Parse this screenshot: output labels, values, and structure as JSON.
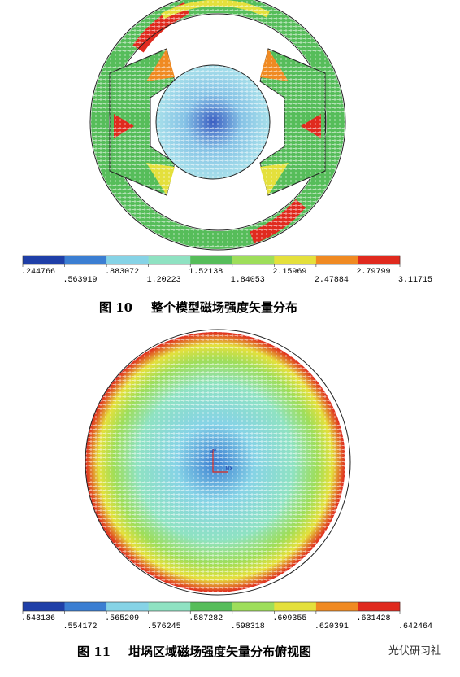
{
  "figures": [
    {
      "label": "图 10",
      "title": "整个模型磁场强度矢量分布",
      "colorbar": {
        "colors": [
          "#1f3fa8",
          "#3b7ed2",
          "#86d3e6",
          "#8fe2c2",
          "#56bd5a",
          "#9ede5a",
          "#e4e03c",
          "#f08a22",
          "#e02a1e"
        ],
        "labels": [
          ".244766",
          ".563919",
          ".883072",
          "1.20223",
          "1.52138",
          "1.84053",
          "2.15969",
          "2.47884",
          "2.79799",
          "3.11715"
        ]
      }
    },
    {
      "label": "图 11",
      "title": "坩埚区域磁场强度矢量分布俯视图",
      "axis_labels": [
        "WY",
        "WX"
      ],
      "colorbar": {
        "colors": [
          "#1f3fa8",
          "#3b7ed2",
          "#86d3e6",
          "#8fe2c2",
          "#56bd5a",
          "#9ede5a",
          "#e4e03c",
          "#f08a22",
          "#e02a1e"
        ],
        "labels": [
          ".543136",
          ".554172",
          ".565209",
          ".576245",
          ".587282",
          ".598318",
          ".609355",
          ".620391",
          ".631428",
          ".642464"
        ]
      }
    }
  ],
  "watermark": "光伏研习社"
}
